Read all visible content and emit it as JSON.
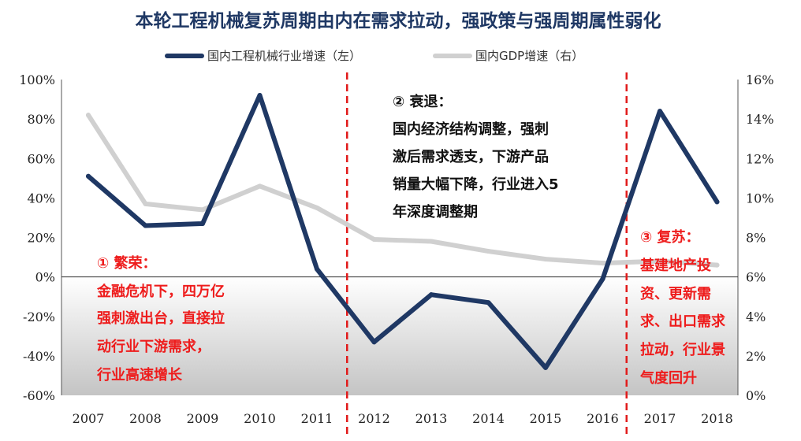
{
  "chart_data": {
    "type": "line",
    "title": "本轮工程机械复苏周期由内在需求拉动，强政策与强周期属性弱化",
    "categories": [
      "2007",
      "2008",
      "2009",
      "2010",
      "2011",
      "2012",
      "2013",
      "2014",
      "2015",
      "2016",
      "2017",
      "2018"
    ],
    "series": [
      {
        "name": "国内工程机械行业增速（左）",
        "axis": "left",
        "color": "#1f3864",
        "values": [
          51,
          26,
          27,
          92,
          4,
          -33,
          -9,
          -13,
          -46,
          -1,
          84,
          38
        ]
      },
      {
        "name": "国内GDP增速（右）",
        "axis": "right",
        "color": "#d0d0d0",
        "values": [
          14.2,
          9.7,
          9.4,
          10.6,
          9.5,
          7.9,
          7.8,
          7.3,
          6.9,
          6.7,
          6.8,
          6.6
        ]
      }
    ],
    "y_left": {
      "min": -60,
      "max": 100,
      "step": 20,
      "ticks": [
        "100%",
        "80%",
        "60%",
        "40%",
        "20%",
        "0%",
        "-20%",
        "-40%",
        "-60%"
      ]
    },
    "y_right": {
      "min": 0,
      "max": 16,
      "step": 2,
      "ticks": [
        "16%",
        "14%",
        "12%",
        "10%",
        "8%",
        "6%",
        "4%",
        "2%",
        "0%"
      ]
    },
    "legend_position": "top",
    "phase_dividers": [
      "2011-2012",
      "2016-2017"
    ],
    "annotations": [
      {
        "color": "red",
        "lines": [
          "① 繁荣：",
          "金融危机下，四万亿",
          "强刺激出台，直接拉",
          "动行业下游需求，",
          "行业高速增长"
        ]
      },
      {
        "color": "black",
        "lines": [
          "② 衰退：",
          "国内经济结构调整，强刺",
          "激后需求透支，下游产品",
          "销量大幅下降，行业进入5",
          "年深度调整期"
        ]
      },
      {
        "color": "red",
        "lines": [
          "③ 复苏：",
          "基建地产投",
          "资、更新需",
          "求、出口需求",
          "拉动，行业景",
          "气度回升"
        ]
      }
    ]
  },
  "colors": {
    "divider": "#e11b1b",
    "negative_band": "#c8c8c8",
    "annotation_red": "#ee1c1c"
  }
}
